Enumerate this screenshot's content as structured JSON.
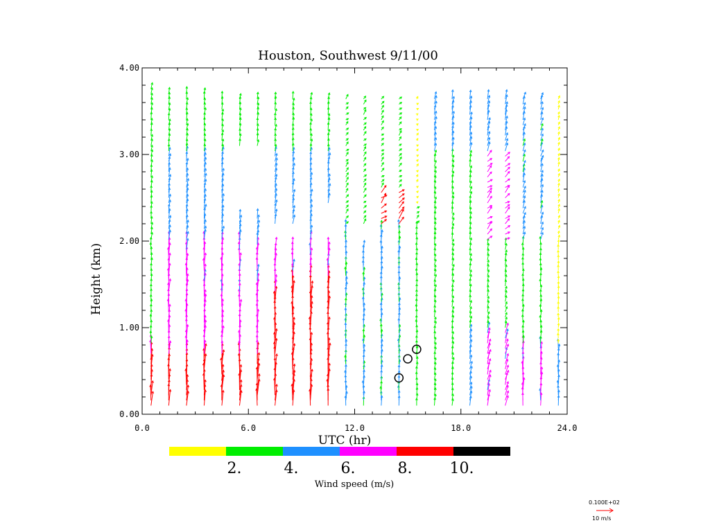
{
  "chart_data": {
    "type": "wind_profile",
    "title": "Houston, Southwest   9/11/00",
    "xlabel": "UTC (hr)",
    "ylabel": "Height (km)",
    "xlim": [
      0,
      24
    ],
    "ylim": [
      0,
      4
    ],
    "x_ticks": [
      "0.0",
      "6.0",
      "12.0",
      "18.0",
      "24.0"
    ],
    "y_ticks": [
      "0.00",
      "1.00",
      "2.00",
      "3.00",
      "4.00"
    ],
    "colorbar": {
      "title": "Wind speed (m/s)",
      "labels": [
        "2.",
        "4.",
        "6.",
        "8.",
        "10."
      ],
      "colors": [
        "#ffff00",
        "#00ee00",
        "#1e90ff",
        "#ff00ff",
        "#ff0000",
        "#000000"
      ]
    },
    "reference_vector": {
      "value_label": "0.100E+02",
      "unit_label": "10 m/s",
      "color": "#ff0000"
    },
    "profile_times_utc": [
      0.5,
      1.5,
      2.5,
      3.5,
      4.5,
      5.5,
      6.5,
      7.5,
      8.5,
      9.5,
      10.5,
      11.5,
      12.5,
      13.5,
      14.5,
      15.5,
      16.5,
      17.5,
      18.5,
      19.5,
      20.5,
      21.5,
      22.5,
      23.5
    ],
    "circled_markers": [
      {
        "time": 14.5,
        "height": 0.42
      },
      {
        "time": 15.0,
        "height": 0.64
      },
      {
        "time": 15.5,
        "height": 0.75
      }
    ]
  }
}
